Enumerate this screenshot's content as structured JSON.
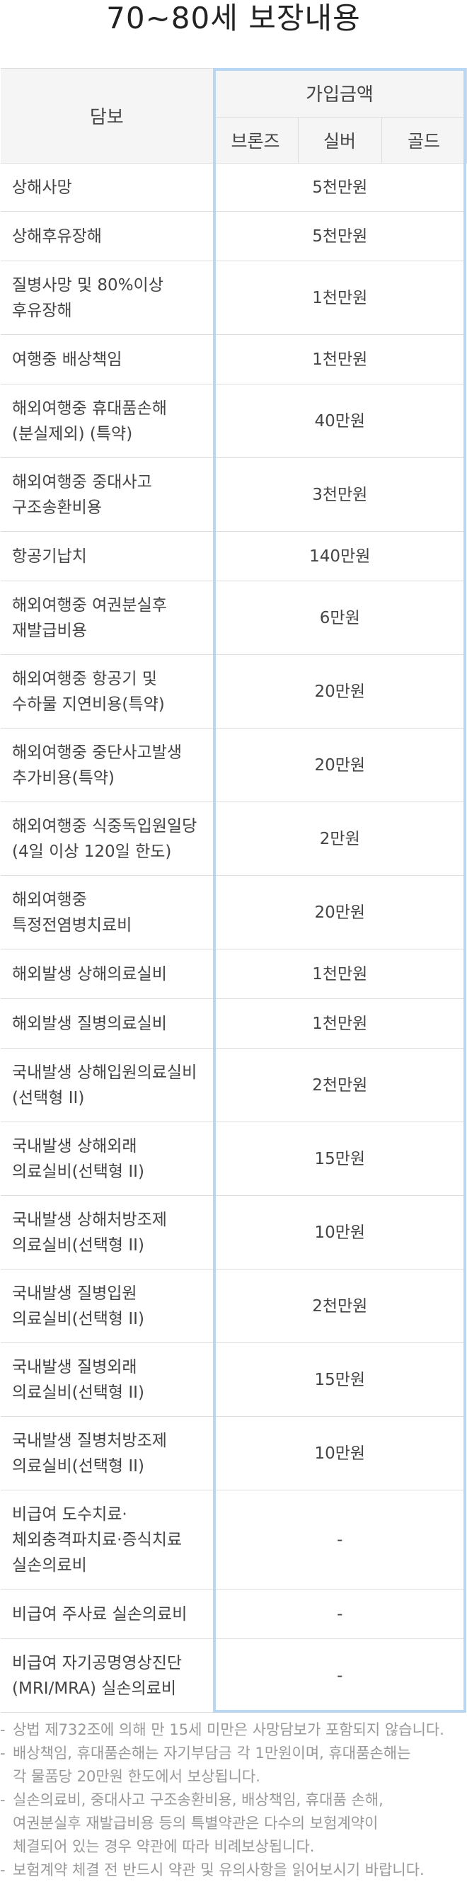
{
  "page_title": "70~80세 보장내용",
  "table": {
    "header": {
      "coverage": "담보",
      "subscription_amount": "가입금액",
      "plans": [
        "브론즈",
        "실버",
        "골드"
      ]
    },
    "rows": [
      {
        "name": "상해사망",
        "amount": "5천만원",
        "height": 68
      },
      {
        "name": "상해후유장해",
        "amount": "5천만원",
        "height": 70
      },
      {
        "name": "질병사망 및 80%이상\n후유장해",
        "amount": "1천만원",
        "height": 104
      },
      {
        "name": "여행중 배상책임",
        "amount": "1천만원",
        "height": 70
      },
      {
        "name": "해외여행중 휴대품손해\n(분실제외) (특약)",
        "amount": "40만원",
        "height": 104
      },
      {
        "name": "해외여행중 중대사고\n구조송환비용",
        "amount": "3천만원",
        "height": 104
      },
      {
        "name": "항공기납치",
        "amount": "140만원",
        "height": 70
      },
      {
        "name": "해외여행중 여권분실후\n재발급비용",
        "amount": "6만원",
        "height": 104
      },
      {
        "name": "해외여행중 항공기 및\n수하물 지연비용(특약)",
        "amount": "20만원",
        "height": 104
      },
      {
        "name": "해외여행중 중단사고발생\n추가비용(특약)",
        "amount": "20만원",
        "height": 104
      },
      {
        "name": "해외여행중 식중독입원일당\n(4일 이상 120일 한도)",
        "amount": "2만원",
        "height": 104
      },
      {
        "name": "해외여행중\n특정전염병치료비",
        "amount": "20만원",
        "height": 104
      },
      {
        "name": "해외발생 상해의료실비",
        "amount": "1천만원",
        "height": 70
      },
      {
        "name": "해외발생 질병의료실비",
        "amount": "1천만원",
        "height": 70
      },
      {
        "name": "국내발생 상해입원의료실비\n(선택형 II)",
        "amount": "2천만원",
        "height": 104
      },
      {
        "name": "국내발생 상해외래\n의료실비(선택형 II)",
        "amount": "15만원",
        "height": 104
      },
      {
        "name": "국내발생 상해처방조제\n의료실비(선택형 II)",
        "amount": "10만원",
        "height": 104
      },
      {
        "name": "국내발생 질병입원\n의료실비(선택형 II)",
        "amount": "2천만원",
        "height": 104
      },
      {
        "name": "국내발생 질병외래\n의료실비(선택형 II)",
        "amount": "15만원",
        "height": 104
      },
      {
        "name": "국내발생 질병처방조제\n의료실비(선택형 II)",
        "amount": "10만원",
        "height": 104
      },
      {
        "name": "비급여 도수치료·\n체외충격파치료·증식치료\n실손의료비",
        "amount": "-",
        "height": 140
      },
      {
        "name": "비급여 주사료 실손의료비",
        "amount": "-",
        "height": 70
      },
      {
        "name": "비급여 자기공명영상진단\n(MRI/MRA) 실손의료비",
        "amount": "-",
        "height": 104
      }
    ]
  },
  "notes": [
    "상법 제732조에 의해 만 15세 미만은 사망담보가 포함되지 않습니다.",
    "배상책임, 휴대품손해는 자기부담금 각 1만원이며, 휴대품손해는\n각 물품당 20만원 한도에서 보상됩니다.",
    "실손의료비, 중대사고 구조송환비용, 배상책임, 휴대품 손해,\n여권분실후 재발급비용 등의 특별약관은 다수의 보험계약이\n체결되어 있는 경우 약관에 따라 비례보상됩니다.",
    "보험계약 체결 전 반드시 약관 및 유의사항을 읽어보시기 바랍니다."
  ]
}
